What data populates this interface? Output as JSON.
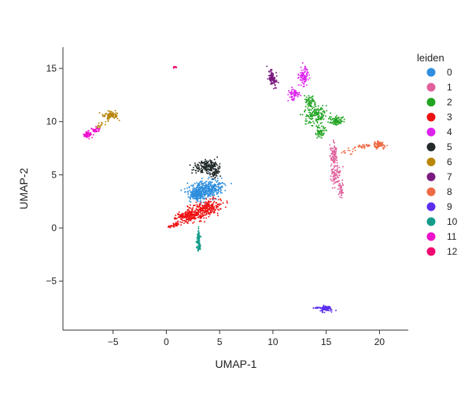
{
  "chart_data": {
    "type": "scatter",
    "title": "",
    "xlabel": "UMAP-1",
    "ylabel": "UMAP-2",
    "xlim": [
      -9.7,
      22.7
    ],
    "ylim": [
      -9.6,
      17.0
    ],
    "xticks": [
      -5,
      0,
      5,
      10,
      15,
      20
    ],
    "yticks": [
      -5,
      0,
      5,
      10,
      15
    ],
    "tick_labels_x": [
      "−5",
      "0",
      "5",
      "10",
      "15",
      "20"
    ],
    "tick_labels_y": [
      "−5",
      "0",
      "5",
      "10",
      "15"
    ],
    "grid": false,
    "legend": {
      "title": "leiden",
      "placement": "right",
      "entries": [
        "0",
        "1",
        "2",
        "3",
        "4",
        "5",
        "6",
        "7",
        "8",
        "9",
        "10",
        "11",
        "12"
      ]
    },
    "colors": {
      "0": "#2f8fde",
      "1": "#e0609c",
      "2": "#22a422",
      "3": "#ee1111",
      "4": "#dd22ee",
      "5": "#222a2a",
      "6": "#b8860b",
      "7": "#7a1a80",
      "8": "#ec6a44",
      "9": "#5b2ef0",
      "10": "#139c8a",
      "11": "#ee11cc",
      "12": "#f00a70"
    },
    "clusters": [
      {
        "name": "0",
        "points": 520,
        "parts": [
          {
            "cx": 3.8,
            "cy": 3.6,
            "sx": 1.1,
            "sy": 0.55,
            "rot": 0.25,
            "w": 1
          },
          {
            "cx": 2.9,
            "cy": 3.1,
            "sx": 0.4,
            "sy": 0.3,
            "rot": 0,
            "w": 0.3
          }
        ]
      },
      {
        "name": "1",
        "points": 200,
        "parts": [
          {
            "cx": 15.7,
            "cy": 7.0,
            "sx": 0.2,
            "sy": 0.7,
            "rot": 0,
            "w": 1
          },
          {
            "cx": 15.9,
            "cy": 5.0,
            "sx": 0.3,
            "sy": 0.75,
            "rot": -0.2,
            "w": 1
          },
          {
            "cx": 16.4,
            "cy": 3.6,
            "sx": 0.15,
            "sy": 0.5,
            "rot": 0,
            "w": 0.5
          }
        ]
      },
      {
        "name": "2",
        "points": 330,
        "parts": [
          {
            "cx": 14.0,
            "cy": 10.6,
            "sx": 0.7,
            "sy": 0.65,
            "rot": 0,
            "w": 1
          },
          {
            "cx": 16.0,
            "cy": 10.1,
            "sx": 0.45,
            "sy": 0.3,
            "rot": 0,
            "w": 0.5
          },
          {
            "cx": 13.4,
            "cy": 12.0,
            "sx": 0.3,
            "sy": 0.35,
            "rot": 0,
            "w": 0.3
          },
          {
            "cx": 14.5,
            "cy": 9.0,
            "sx": 0.35,
            "sy": 0.35,
            "rot": 0,
            "w": 0.3
          }
        ]
      },
      {
        "name": "3",
        "points": 480,
        "parts": [
          {
            "cx": 3.7,
            "cy": 1.8,
            "sx": 1.1,
            "sy": 0.55,
            "rot": 0.3,
            "w": 1
          },
          {
            "cx": 2.0,
            "cy": 1.1,
            "sx": 0.7,
            "sy": 0.35,
            "rot": 0.15,
            "w": 0.6
          },
          {
            "cx": 0.8,
            "cy": 0.3,
            "sx": 0.5,
            "sy": 0.15,
            "rot": 0.3,
            "w": 0.12
          }
        ]
      },
      {
        "name": "4",
        "points": 160,
        "parts": [
          {
            "cx": 12.9,
            "cy": 14.3,
            "sx": 0.3,
            "sy": 0.6,
            "rot": 0,
            "w": 1
          },
          {
            "cx": 12.0,
            "cy": 12.5,
            "sx": 0.35,
            "sy": 0.35,
            "rot": 0,
            "w": 0.8
          }
        ]
      },
      {
        "name": "5",
        "points": 230,
        "parts": [
          {
            "cx": 3.8,
            "cy": 5.8,
            "sx": 0.75,
            "sy": 0.4,
            "rot": 0.1,
            "w": 1
          },
          {
            "cx": 4.6,
            "cy": 5.2,
            "sx": 0.3,
            "sy": 0.35,
            "rot": 0,
            "w": 0.3
          }
        ]
      },
      {
        "name": "6",
        "points": 110,
        "parts": [
          {
            "cx": -5.2,
            "cy": 10.6,
            "sx": 0.45,
            "sy": 0.3,
            "rot": 0,
            "w": 1
          },
          {
            "cx": -6.2,
            "cy": 9.7,
            "sx": 0.3,
            "sy": 0.15,
            "rot": 0.4,
            "w": 0.2
          }
        ]
      },
      {
        "name": "7",
        "points": 100,
        "parts": [
          {
            "cx": 9.9,
            "cy": 14.1,
            "sx": 0.25,
            "sy": 0.5,
            "rot": 0.3,
            "w": 1
          }
        ]
      },
      {
        "name": "8",
        "points": 110,
        "parts": [
          {
            "cx": 20.0,
            "cy": 7.8,
            "sx": 0.45,
            "sy": 0.22,
            "rot": 0,
            "w": 1
          },
          {
            "cx": 18.5,
            "cy": 7.7,
            "sx": 0.6,
            "sy": 0.12,
            "rot": 0,
            "w": 0.4
          },
          {
            "cx": 17.0,
            "cy": 7.2,
            "sx": 0.5,
            "sy": 0.2,
            "rot": 0.3,
            "w": 0.2
          }
        ]
      },
      {
        "name": "9",
        "points": 90,
        "parts": [
          {
            "cx": 15.0,
            "cy": -7.6,
            "sx": 0.4,
            "sy": 0.22,
            "rot": 0,
            "w": 1
          },
          {
            "cx": 14.1,
            "cy": -7.5,
            "sx": 0.2,
            "sy": 0.06,
            "rot": 0,
            "w": 0.2
          }
        ]
      },
      {
        "name": "10",
        "points": 90,
        "parts": [
          {
            "cx": 3.0,
            "cy": -0.9,
            "sx": 0.12,
            "sy": 0.6,
            "rot": 0,
            "w": 1
          },
          {
            "cx": 3.1,
            "cy": -1.9,
            "sx": 0.1,
            "sy": 0.3,
            "rot": 0,
            "w": 0.4
          }
        ]
      },
      {
        "name": "11",
        "points": 90,
        "parts": [
          {
            "cx": -7.4,
            "cy": 8.8,
            "sx": 0.3,
            "sy": 0.2,
            "rot": 0,
            "w": 1
          },
          {
            "cx": -6.7,
            "cy": 9.2,
            "sx": 0.3,
            "sy": 0.15,
            "rot": 0.4,
            "w": 0.5
          }
        ]
      },
      {
        "name": "12",
        "points": 12,
        "parts": [
          {
            "cx": 0.8,
            "cy": 15.1,
            "sx": 0.1,
            "sy": 0.1,
            "rot": 0,
            "w": 1
          }
        ]
      }
    ]
  }
}
